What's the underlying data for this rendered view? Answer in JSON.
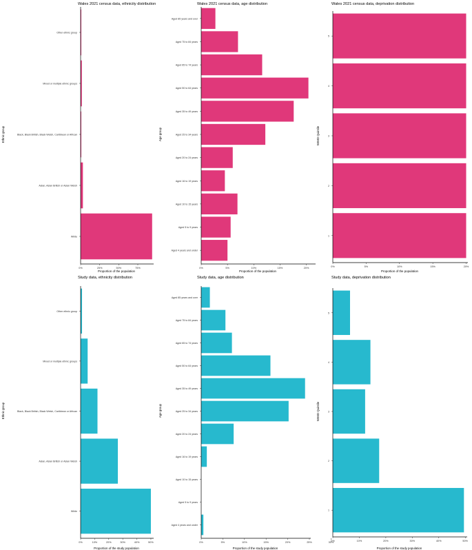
{
  "colors": {
    "census": "#e0387a",
    "study": "#27b9ce",
    "axis": "#000000"
  },
  "chart_data": [
    {
      "type": "bar",
      "orientation": "horizontal",
      "title": "Wales 2021 census data, ethnicity distribution",
      "xlabel": "Proportion of the population",
      "ylabel": "Ethnic group",
      "categories": [
        "White",
        "Asian, Asian British or Asian Welsh",
        "Black, Black British, Black Welsh, Caribbean or African",
        "Mixed or multiple ethnic groups",
        "Other ethnic group"
      ],
      "values": [
        93.8,
        3.0,
        0.9,
        1.6,
        0.9
      ],
      "xlim": [
        0,
        94
      ],
      "xticks": [
        0,
        25,
        50,
        75
      ],
      "ticklabels": [
        "0%",
        "25%",
        "50%",
        "75%"
      ],
      "color": "census"
    },
    {
      "type": "bar",
      "orientation": "horizontal",
      "title": "Wales 2021 census data, age distribution",
      "xlabel": "Proportion of the population",
      "ylabel": "Age group",
      "categories": [
        "Aged 4 years and under",
        "Aged 5 to 9 years",
        "Aged 10 to 15 years",
        "Aged 16 to 19 years",
        "Aged 20 to 24 years",
        "Aged 25 to 34 years",
        "Aged 35 to 49 years",
        "Aged 50 to 64 years",
        "Aged 65 to 74 years",
        "Aged 75 to 84 years",
        "Aged 85 years and over"
      ],
      "values": [
        5.0,
        5.6,
        6.9,
        4.5,
        6.0,
        12.2,
        17.6,
        20.4,
        11.6,
        7.0,
        2.7
      ],
      "xlim": [
        0,
        21.5
      ],
      "xticks": [
        0,
        5,
        10,
        15,
        20
      ],
      "ticklabels": [
        "0%",
        "5%",
        "10%",
        "15%",
        "20%"
      ],
      "color": "census"
    },
    {
      "type": "bar",
      "orientation": "horizontal",
      "title": "Wales 2021 census data, deprivation distribution",
      "xlabel": "Proportion of the population",
      "ylabel": "WIMD Quintile",
      "categories": [
        "1",
        "2",
        "3",
        "4",
        "5"
      ],
      "values": [
        20,
        20,
        20,
        20,
        20
      ],
      "xlim": [
        0,
        20.05
      ],
      "xticks": [
        0,
        5,
        10,
        15,
        20
      ],
      "ticklabels": [
        "0%",
        "5%",
        "10%",
        "15%",
        "20%"
      ],
      "color": "census"
    },
    {
      "type": "bar",
      "orientation": "horizontal",
      "title": "Study data, ethnicity distribution",
      "xlabel": "Proportion of the study population",
      "ylabel": "Ethnic group",
      "categories": [
        "White",
        "Asian, Asian British or Asian Welsh",
        "Black, Black British, Black Welsh, Caribbean or African",
        "Mixed or multiple ethnic groups",
        "Other ethnic group"
      ],
      "values": [
        50.0,
        26.5,
        12.0,
        5.0,
        1.0
      ],
      "xlim": [
        0,
        51
      ],
      "xticks": [
        0,
        10,
        20,
        30,
        40,
        50
      ],
      "ticklabels": [
        "0%",
        "10%",
        "20%",
        "30%",
        "40%",
        "50%"
      ],
      "color": "study"
    },
    {
      "type": "bar",
      "orientation": "horizontal",
      "title": "Study data, age distribution",
      "xlabel": "Proportion of the study population",
      "ylabel": "Age group",
      "categories": [
        "Aged 4 years and under",
        "Aged 5 to 9 years",
        "Aged 10 to 15 years",
        "Aged 16 to 19 years",
        "Aged 20 to 24 years",
        "Aged 25 to 34 years",
        "Aged 35 to 49 years",
        "Aged 50 to 64 years",
        "Aged 65 to 74 years",
        "Aged 75 to 84 years",
        "Aged 85 years and over"
      ],
      "values": [
        0.5,
        0,
        0,
        1.3,
        7.5,
        20.2,
        24.0,
        16.0,
        7.1,
        5.6,
        2.0
      ],
      "xlim": [
        0,
        25
      ],
      "xticks": [
        0,
        5,
        10,
        15,
        20,
        25,
        30
      ],
      "ticklabels": [
        "0%",
        "5%",
        "10%",
        "15%",
        "20%",
        "25%",
        "30%"
      ],
      "color": "study"
    },
    {
      "type": "bar",
      "orientation": "horizontal",
      "title": "Study data, deprivation distribution",
      "xlabel": "Proportion of the study population",
      "ylabel": "WIMD Quintile",
      "categories": [
        "1",
        "2",
        "3",
        "4",
        "5"
      ],
      "values": [
        49.5,
        17.5,
        12.2,
        14.2,
        6.5
      ],
      "xlim": [
        0,
        50.2
      ],
      "xticks": [
        0,
        10,
        20,
        30,
        40,
        50
      ],
      "ticklabels": [
        "0%",
        "10%",
        "20%",
        "30%",
        "40%",
        "50%"
      ],
      "color": "study"
    }
  ]
}
